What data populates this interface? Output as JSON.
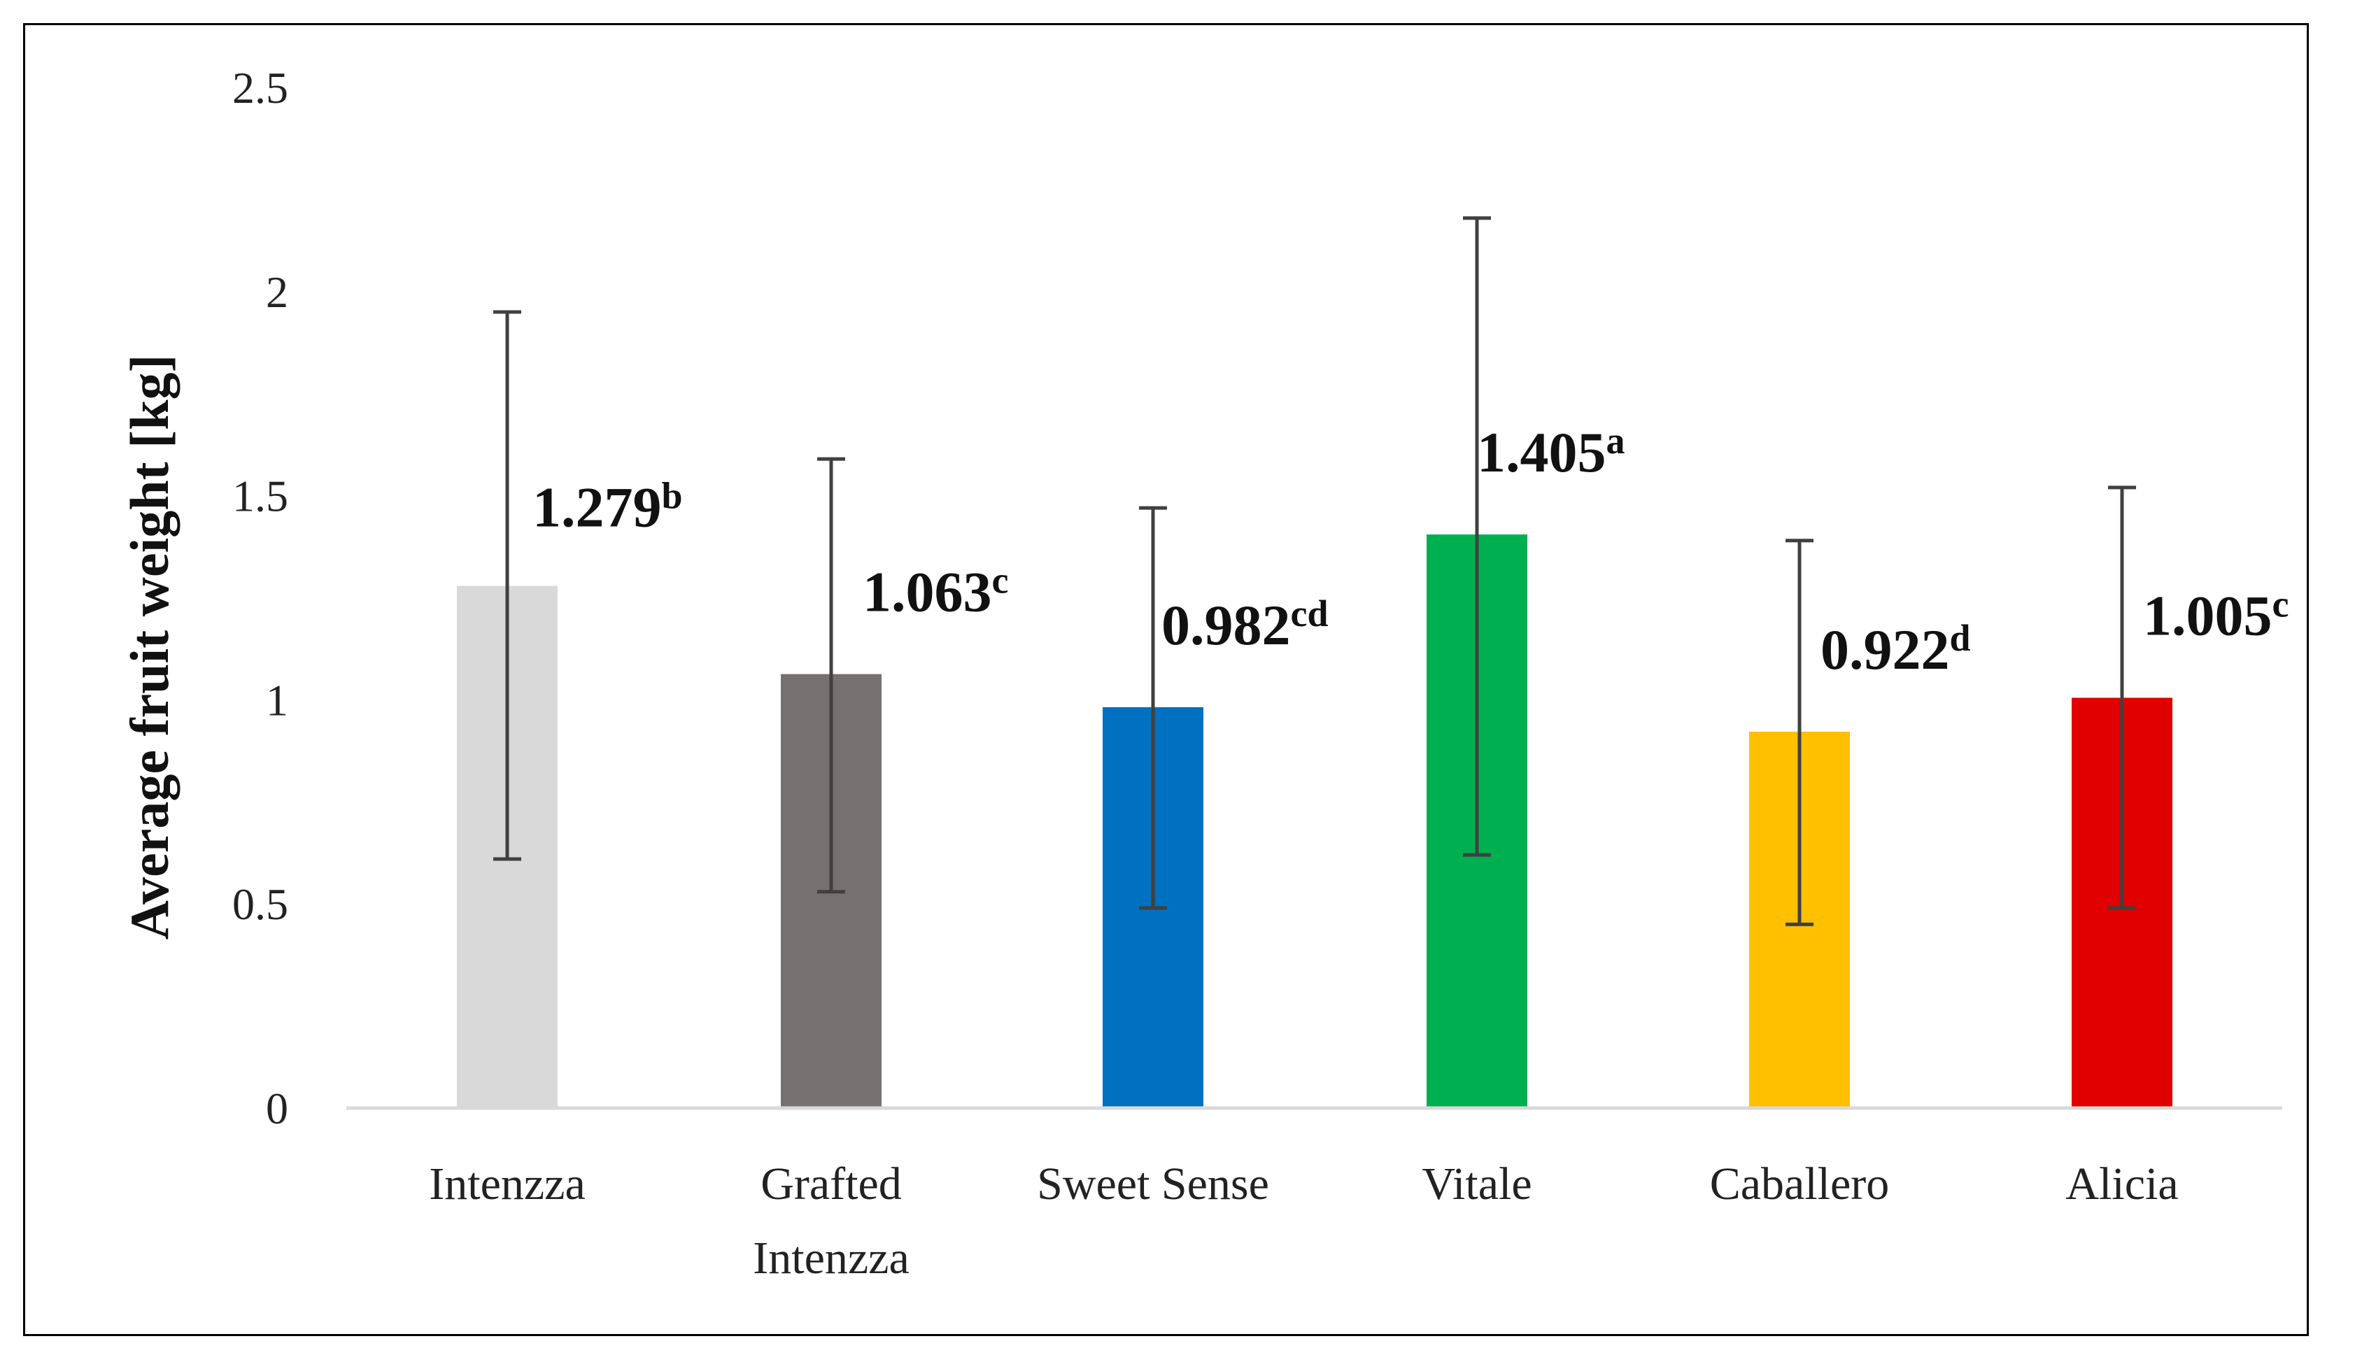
{
  "chart_data": {
    "type": "bar",
    "title": "",
    "xlabel": "",
    "ylabel": "Average fruit weight  [kg]",
    "ylim": [
      0,
      2.5
    ],
    "yticks": [
      "0",
      "0.5",
      "1",
      "1.5",
      "2",
      "2.5"
    ],
    "grid": false,
    "legend": "none",
    "categories": [
      [
        "Intenzza"
      ],
      [
        "Grafted",
        "Intenzza"
      ],
      [
        "Sweet Sense"
      ],
      [
        "Vitale"
      ],
      [
        "Caballero"
      ],
      [
        "Alicia"
      ]
    ],
    "values": [
      1.279,
      1.063,
      0.982,
      1.405,
      0.922,
      1.005
    ],
    "error_high": [
      1.95,
      1.59,
      1.47,
      2.18,
      1.39,
      1.52
    ],
    "error_low": [
      0.61,
      0.53,
      0.49,
      0.62,
      0.45,
      0.49
    ],
    "labels": [
      {
        "value": "1.279",
        "letter": "b"
      },
      {
        "value": "1.063",
        "letter": "c"
      },
      {
        "value": "0.982",
        "letter": "cd"
      },
      {
        "value": "1.405",
        "letter": "a"
      },
      {
        "value": "0.922",
        "letter": "d"
      },
      {
        "value": "1.005",
        "letter": "c"
      }
    ],
    "colors": [
      "#d9d9d9",
      "#767171",
      "#0070c0",
      "#00b050",
      "#ffc000",
      "#e00000"
    ]
  }
}
